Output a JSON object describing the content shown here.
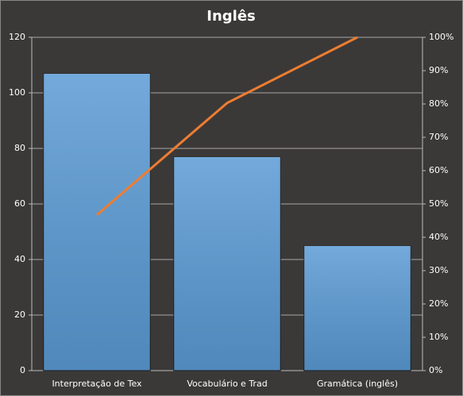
{
  "chart_data": {
    "type": "bar",
    "title": "Inglês",
    "categories": [
      "Interpretação de Tex",
      "Vocabulário e Trad",
      "Gramática (inglês)"
    ],
    "series": [
      {
        "type": "bar",
        "color": "#5b9bd5",
        "values": [
          107,
          77,
          45
        ]
      },
      {
        "type": "line",
        "color": "#ed7d31",
        "axis": "y2",
        "values": [
          46.7,
          80.3,
          100
        ]
      }
    ],
    "ylim": [
      0,
      120
    ],
    "yticks": [
      0,
      20,
      40,
      60,
      80,
      100,
      120
    ],
    "y2lim": [
      0,
      100
    ],
    "y2ticks": [
      {
        "value": 0,
        "label": "0%"
      },
      {
        "value": 10,
        "label": "10%"
      },
      {
        "value": 20,
        "label": "20%"
      },
      {
        "value": 30,
        "label": "30%"
      },
      {
        "value": 40,
        "label": "40%"
      },
      {
        "value": 50,
        "label": "50%"
      },
      {
        "value": 60,
        "label": "60%"
      },
      {
        "value": 70,
        "label": "70%"
      },
      {
        "value": 80,
        "label": "80%"
      },
      {
        "value": 90,
        "label": "90%"
      },
      {
        "value": 100,
        "label": "100%"
      }
    ],
    "grid": true
  }
}
